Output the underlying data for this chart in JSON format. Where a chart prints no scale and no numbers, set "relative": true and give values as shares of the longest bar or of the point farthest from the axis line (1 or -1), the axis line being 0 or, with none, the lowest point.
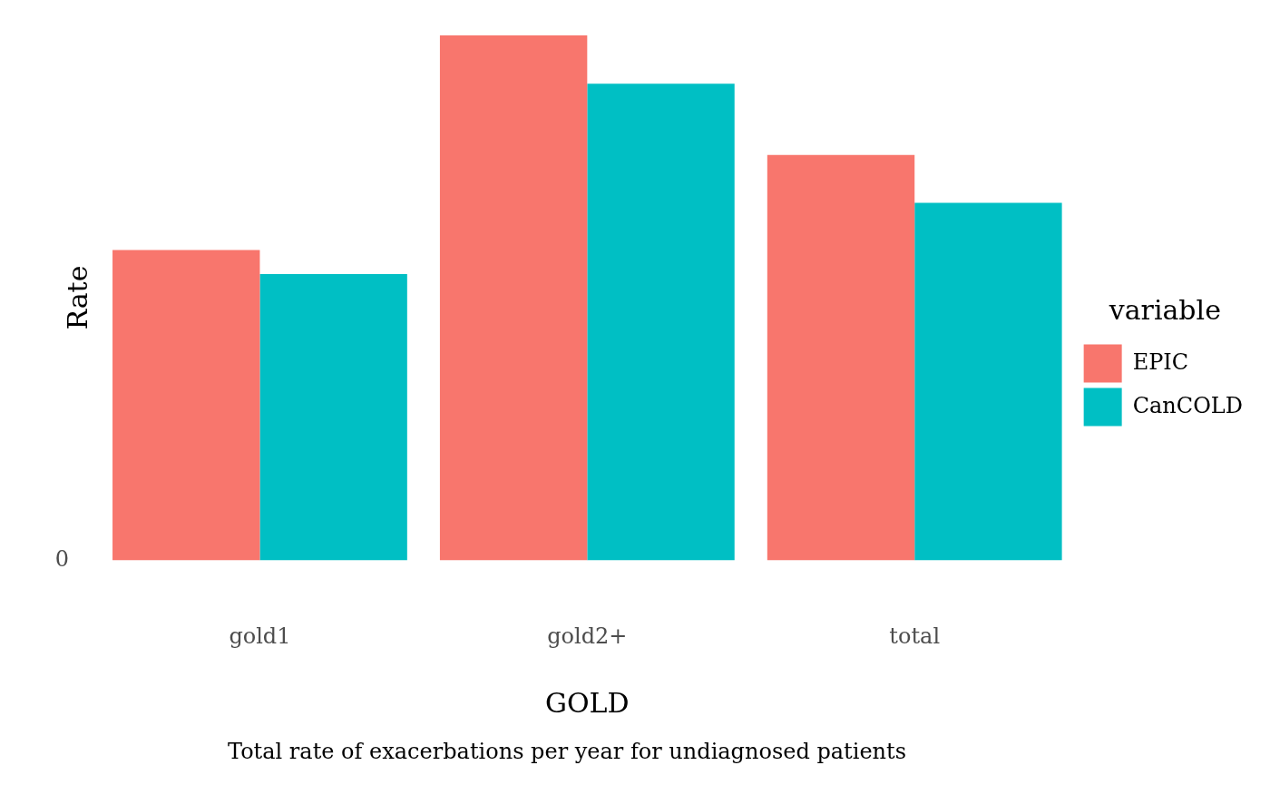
{
  "chart_data": {
    "type": "bar",
    "xlabel": "GOLD",
    "ylabel": "Rate",
    "legend_title": "variable",
    "relative": true,
    "grid": false,
    "legend": "right",
    "categories": [
      "gold1",
      "gold2+",
      "total"
    ],
    "series": [
      {
        "name": "EPIC",
        "color": "#f8766d",
        "values": [
          0.591,
          1,
          0.772
        ]
      },
      {
        "name": "CanCOLD",
        "color": "#00bfc4",
        "values": [
          0.545,
          0.908,
          0.681
        ]
      }
    ],
    "annotations": [
      "0",
      "Total rate of exacerbations per year for undiagnosed patients"
    ]
  }
}
